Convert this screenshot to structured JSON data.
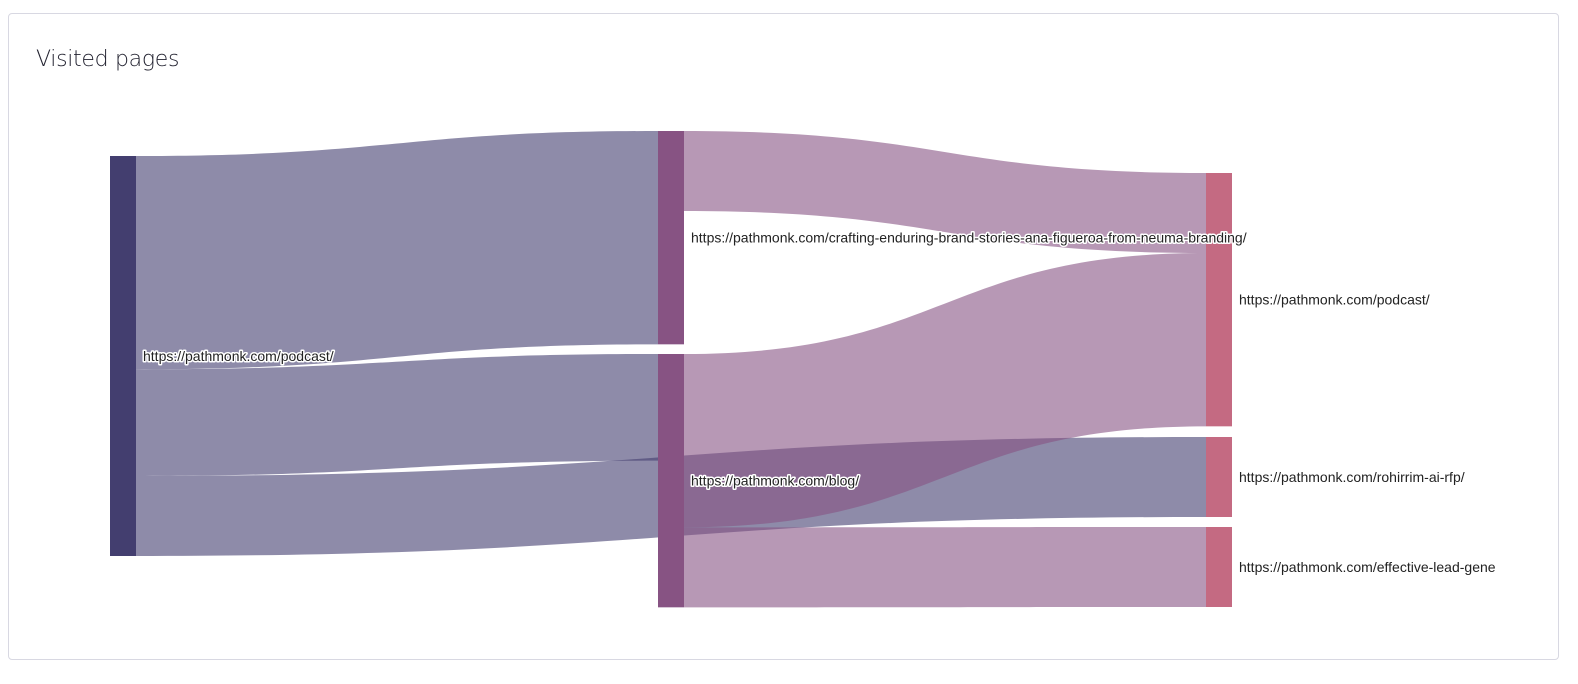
{
  "card": {
    "title": "Visited pages"
  },
  "colors": {
    "left": "#433e6f",
    "middle": "#875383",
    "right": "#c46a82",
    "link_opacity": 0.6
  },
  "chart_data": {
    "type": "sankey",
    "nodes": [
      {
        "id": "a",
        "label": "https://pathmonk.com/podcast/",
        "column": 0
      },
      {
        "id": "b",
        "label": "https://pathmonk.com/crafting-enduring-brand-stories-ana-figueroa-from-neuma-branding/",
        "column": 1
      },
      {
        "id": "c",
        "label": "https://pathmonk.com/blog/",
        "column": 1
      },
      {
        "id": "d",
        "label": "https://pathmonk.com/podcast/",
        "column": 2
      },
      {
        "id": "e",
        "label": "https://pathmonk.com/rohirrim-ai-rfp/",
        "column": 2
      },
      {
        "id": "f",
        "label": "https://pathmonk.com/effective-lead-gene",
        "column": 2
      }
    ],
    "links": [
      {
        "source": "a",
        "target": "b",
        "value": 16
      },
      {
        "source": "a",
        "target": "c",
        "value": 8
      },
      {
        "source": "a",
        "target": "e",
        "value": 6
      },
      {
        "source": "b",
        "target": "d",
        "value": 6
      },
      {
        "source": "c",
        "target": "d",
        "value": 13
      },
      {
        "source": "c",
        "target": "f",
        "value": 6
      }
    ]
  }
}
